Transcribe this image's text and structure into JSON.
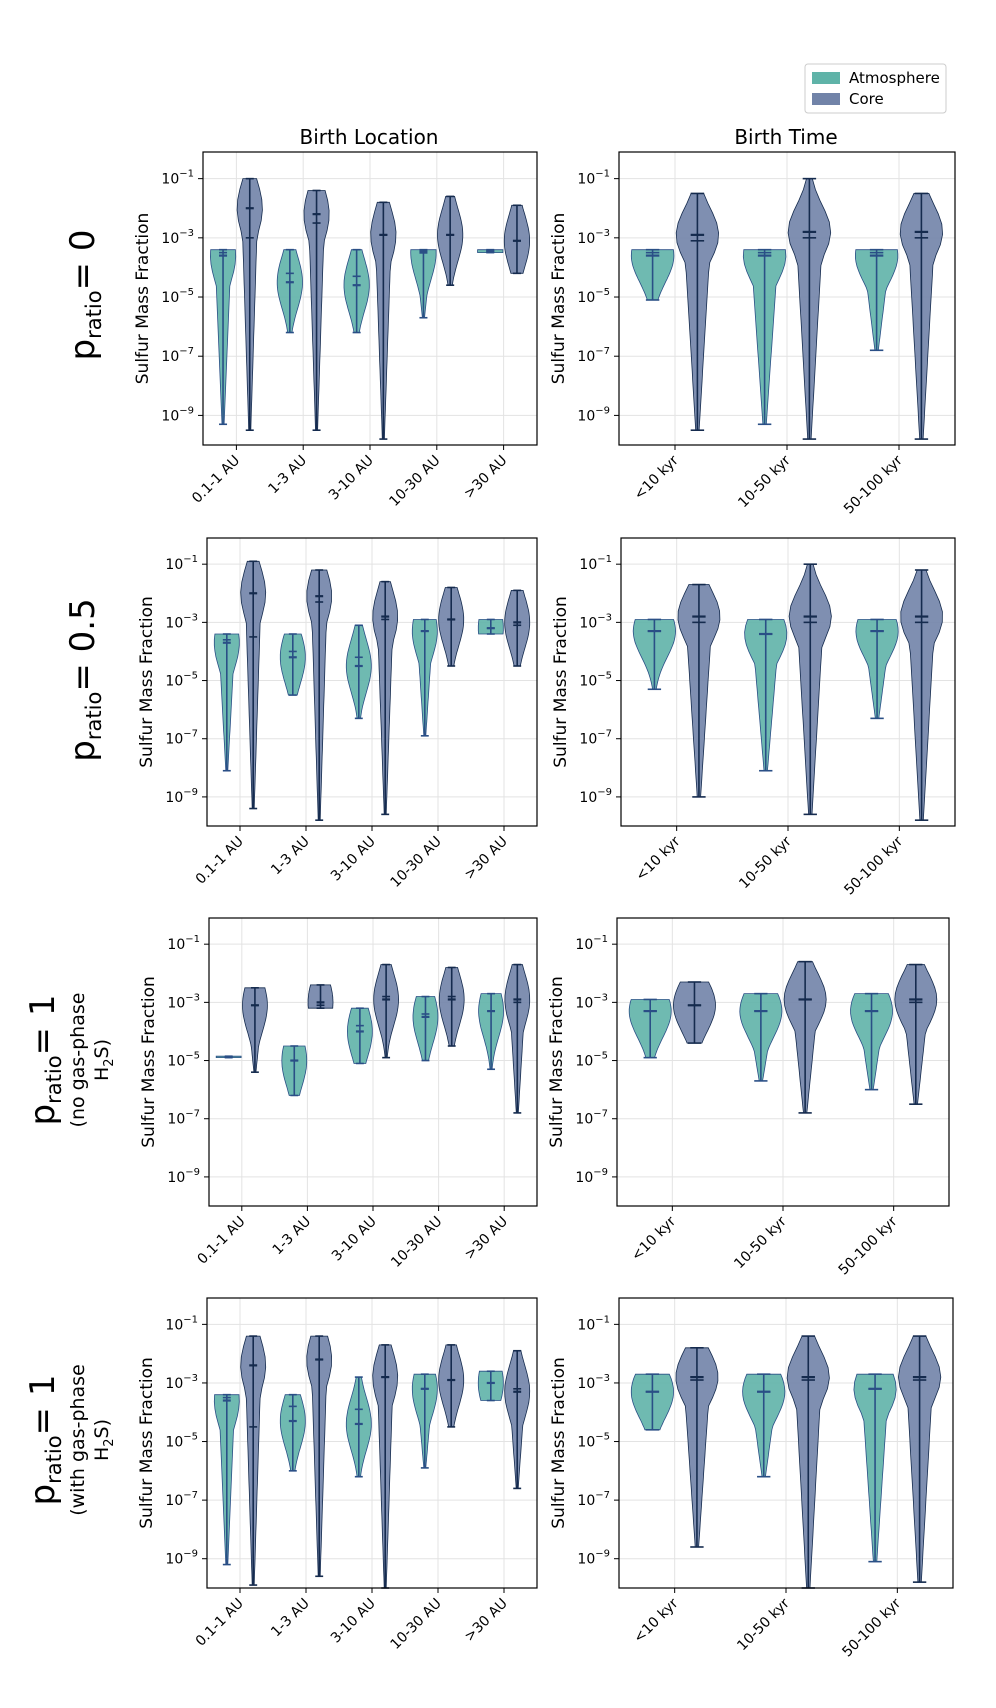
{
  "legend": {
    "items": [
      {
        "label": "Atmosphere",
        "color": "#5fb3a8"
      },
      {
        "label": "Core",
        "color": "#7183a8"
      }
    ]
  },
  "columns": {
    "location_title": "Birth Location",
    "time_title": "Birth Time"
  },
  "rows": [
    {
      "p": "p",
      "sub": "ratio",
      "value": "= 0",
      "note1": "",
      "note2": "",
      "note2_pre": "",
      "note2_sub": "",
      "note2_post": ""
    },
    {
      "p": "p",
      "sub": "ratio",
      "value": "= 0.5",
      "note1": "",
      "note2": "",
      "note2_pre": "",
      "note2_sub": "",
      "note2_post": ""
    },
    {
      "p": "p",
      "sub": "ratio",
      "value": "= 1",
      "note1": "(no gas-phase",
      "note2_pre": "H",
      "note2_sub": "2",
      "note2_post": "S)"
    },
    {
      "p": "p",
      "sub": "ratio",
      "value": "= 1",
      "note1": "(with gas-phase",
      "note2_pre": "H",
      "note2_sub": "2",
      "note2_post": "S)"
    }
  ],
  "chart_data": [
    {
      "type": "violin",
      "row": 0,
      "column": "location",
      "ylabel": "Sulfur Mass Fraction",
      "yscale": "log",
      "ylim_exp": [
        -10,
        -0.1
      ],
      "yticks_exp": [
        -1,
        -3,
        -5,
        -7,
        -9
      ],
      "categories": [
        "0.1-1 AU",
        "1-3 AU",
        "3-10 AU",
        "10-30 AU",
        ">30 AU"
      ],
      "series": [
        {
          "name": "Atmosphere",
          "violins": [
            {
              "min": -9.3,
              "max": -3.4,
              "median": -3.6,
              "mean": -3.5
            },
            {
              "min": -6.2,
              "max": -3.4,
              "median": -4.5,
              "mean": -4.2
            },
            {
              "min": -6.2,
              "max": -3.4,
              "median": -4.6,
              "mean": -4.3
            },
            {
              "min": -5.7,
              "max": -3.4,
              "median": -3.5,
              "mean": -3.45
            },
            {
              "min": -3.5,
              "max": -3.4,
              "median": -3.45,
              "mean": -3.45
            }
          ]
        },
        {
          "name": "Core",
          "violins": [
            {
              "min": -9.5,
              "max": -1.0,
              "median": -2.0,
              "mean": -3.0
            },
            {
              "min": -9.5,
              "max": -1.4,
              "median": -2.2,
              "mean": -2.5
            },
            {
              "min": -9.8,
              "max": -1.8,
              "median": -2.9,
              "mean": -2.9
            },
            {
              "min": -4.6,
              "max": -1.6,
              "median": -2.9,
              "mean": -2.9
            },
            {
              "min": -4.2,
              "max": -1.9,
              "median": -3.1,
              "mean": -3.1
            }
          ]
        }
      ]
    },
    {
      "type": "violin",
      "row": 0,
      "column": "time",
      "ylabel": "Sulfur Mass Fraction",
      "yscale": "log",
      "ylim_exp": [
        -10,
        -0.1
      ],
      "yticks_exp": [
        -1,
        -3,
        -5,
        -7,
        -9
      ],
      "categories": [
        "<10 kyr",
        "10-50 kyr",
        "50-100 kyr"
      ],
      "series": [
        {
          "name": "Atmosphere",
          "violins": [
            {
              "min": -5.1,
              "max": -3.4,
              "median": -3.6,
              "mean": -3.5
            },
            {
              "min": -9.3,
              "max": -3.4,
              "median": -3.6,
              "mean": -3.5
            },
            {
              "min": -6.8,
              "max": -3.4,
              "median": -3.6,
              "mean": -3.5
            }
          ]
        },
        {
          "name": "Core",
          "violins": [
            {
              "min": -9.5,
              "max": -1.5,
              "median": -2.9,
              "mean": -3.1
            },
            {
              "min": -9.8,
              "max": -1.0,
              "median": -2.8,
              "mean": -3.0
            },
            {
              "min": -9.8,
              "max": -1.5,
              "median": -2.8,
              "mean": -3.0
            }
          ]
        }
      ]
    },
    {
      "type": "violin",
      "row": 1,
      "column": "location",
      "ylabel": "Sulfur Mass Fraction",
      "yscale": "log",
      "ylim_exp": [
        -10,
        -0.1
      ],
      "yticks_exp": [
        -1,
        -3,
        -5,
        -7,
        -9
      ],
      "categories": [
        "0.1-1 AU",
        "1-3 AU",
        "3-10 AU",
        "10-30 AU",
        ">30 AU"
      ],
      "series": [
        {
          "name": "Atmosphere",
          "violins": [
            {
              "min": -8.1,
              "max": -3.4,
              "median": -3.7,
              "mean": -3.6
            },
            {
              "min": -5.5,
              "max": -3.4,
              "median": -4.2,
              "mean": -4.0
            },
            {
              "min": -6.3,
              "max": -3.1,
              "median": -4.5,
              "mean": -4.2
            },
            {
              "min": -6.9,
              "max": -2.9,
              "median": -3.3,
              "mean": -3.3
            },
            {
              "min": -3.4,
              "max": -2.9,
              "median": -3.2,
              "mean": -3.2
            }
          ]
        },
        {
          "name": "Core",
          "violins": [
            {
              "min": -9.4,
              "max": -0.9,
              "median": -2.0,
              "mean": -3.5
            },
            {
              "min": -9.8,
              "max": -1.2,
              "median": -2.1,
              "mean": -2.3
            },
            {
              "min": -9.6,
              "max": -1.6,
              "median": -2.8,
              "mean": -2.9
            },
            {
              "min": -4.5,
              "max": -1.8,
              "median": -2.9,
              "mean": -2.9
            },
            {
              "min": -4.5,
              "max": -1.9,
              "median": -3.0,
              "mean": -3.1
            }
          ]
        }
      ]
    },
    {
      "type": "violin",
      "row": 1,
      "column": "time",
      "ylabel": "Sulfur Mass Fraction",
      "yscale": "log",
      "ylim_exp": [
        -10,
        -0.1
      ],
      "yticks_exp": [
        -1,
        -3,
        -5,
        -7,
        -9
      ],
      "categories": [
        "<10 kyr",
        "10-50 kyr",
        "50-100 kyr"
      ],
      "series": [
        {
          "name": "Atmosphere",
          "violins": [
            {
              "min": -5.3,
              "max": -2.9,
              "median": -3.3,
              "mean": -3.3
            },
            {
              "min": -8.1,
              "max": -2.9,
              "median": -3.4,
              "mean": -3.4
            },
            {
              "min": -6.3,
              "max": -2.9,
              "median": -3.3,
              "mean": -3.3
            }
          ]
        },
        {
          "name": "Core",
          "violins": [
            {
              "min": -9.0,
              "max": -1.7,
              "median": -2.8,
              "mean": -3.0
            },
            {
              "min": -9.6,
              "max": -1.0,
              "median": -2.8,
              "mean": -3.0
            },
            {
              "min": -9.8,
              "max": -1.2,
              "median": -2.8,
              "mean": -3.0
            }
          ]
        }
      ]
    },
    {
      "type": "violin",
      "row": 2,
      "column": "location",
      "ylabel": "Sulfur Mass Fraction",
      "yscale": "log",
      "ylim_exp": [
        -10,
        -0.1
      ],
      "yticks_exp": [
        -1,
        -3,
        -5,
        -7,
        -9
      ],
      "categories": [
        "0.1-1 AU",
        "1-3 AU",
        "3-10 AU",
        "10-30 AU",
        ">30 AU"
      ],
      "series": [
        {
          "name": "Atmosphere",
          "violins": [
            {
              "min": -4.9,
              "max": -4.85,
              "median": -4.88,
              "mean": -4.88
            },
            {
              "min": -6.2,
              "max": -4.5,
              "median": -5.0,
              "mean": -5.0
            },
            {
              "min": -5.1,
              "max": -3.2,
              "median": -4.0,
              "mean": -3.8
            },
            {
              "min": -5.0,
              "max": -2.8,
              "median": -3.5,
              "mean": -3.4
            },
            {
              "min": -5.3,
              "max": -2.7,
              "median": -3.3,
              "mean": -3.3
            }
          ]
        },
        {
          "name": "Core",
          "violins": [
            {
              "min": -5.4,
              "max": -2.5,
              "median": -3.1,
              "mean": -3.1
            },
            {
              "min": -3.2,
              "max": -2.4,
              "median": -3.0,
              "mean": -3.1
            },
            {
              "min": -4.9,
              "max": -1.7,
              "median": -2.9,
              "mean": -2.8
            },
            {
              "min": -4.5,
              "max": -1.8,
              "median": -2.9,
              "mean": -2.8
            },
            {
              "min": -6.8,
              "max": -1.7,
              "median": -2.9,
              "mean": -3.0
            }
          ]
        }
      ]
    },
    {
      "type": "violin",
      "row": 2,
      "column": "time",
      "ylabel": "Sulfur Mass Fraction",
      "yscale": "log",
      "ylim_exp": [
        -10,
        -0.1
      ],
      "yticks_exp": [
        -1,
        -3,
        -5,
        -7,
        -9
      ],
      "categories": [
        "<10 kyr",
        "10-50 kyr",
        "50-100 kyr"
      ],
      "series": [
        {
          "name": "Atmosphere",
          "violins": [
            {
              "min": -4.9,
              "max": -2.9,
              "median": -3.3,
              "mean": -3.3
            },
            {
              "min": -5.7,
              "max": -2.7,
              "median": -3.3,
              "mean": -3.3
            },
            {
              "min": -6.0,
              "max": -2.7,
              "median": -3.3,
              "mean": -3.3
            }
          ]
        },
        {
          "name": "Core",
          "violins": [
            {
              "min": -4.4,
              "max": -2.3,
              "median": -3.1,
              "mean": -3.1
            },
            {
              "min": -6.8,
              "max": -1.6,
              "median": -2.9,
              "mean": -2.9
            },
            {
              "min": -6.5,
              "max": -1.7,
              "median": -2.9,
              "mean": -3.0
            }
          ]
        }
      ]
    },
    {
      "type": "violin",
      "row": 3,
      "column": "location",
      "ylabel": "Sulfur Mass Fraction",
      "yscale": "log",
      "ylim_exp": [
        -10,
        -0.1
      ],
      "yticks_exp": [
        -1,
        -3,
        -5,
        -7,
        -9
      ],
      "categories": [
        "0.1-1 AU",
        "1-3 AU",
        "3-10 AU",
        "10-30 AU",
        ">30 AU"
      ],
      "series": [
        {
          "name": "Atmosphere",
          "violins": [
            {
              "min": -9.2,
              "max": -3.4,
              "median": -3.6,
              "mean": -3.5
            },
            {
              "min": -6.0,
              "max": -3.4,
              "median": -4.3,
              "mean": -3.8
            },
            {
              "min": -6.2,
              "max": -2.8,
              "median": -4.4,
              "mean": -3.9
            },
            {
              "min": -5.9,
              "max": -2.7,
              "median": -3.2,
              "mean": -3.2
            },
            {
              "min": -3.6,
              "max": -2.6,
              "median": -3.0,
              "mean": -3.0
            }
          ]
        },
        {
          "name": "Core",
          "violins": [
            {
              "min": -9.9,
              "max": -1.4,
              "median": -2.4,
              "mean": -4.5
            },
            {
              "min": -9.6,
              "max": -1.4,
              "median": -2.2,
              "mean": -2.2
            },
            {
              "min": -10.0,
              "max": -1.7,
              "median": -2.8,
              "mean": -2.8
            },
            {
              "min": -4.5,
              "max": -1.7,
              "median": -2.9,
              "mean": -2.9
            },
            {
              "min": -6.6,
              "max": -1.9,
              "median": -3.3,
              "mean": -3.2
            }
          ]
        }
      ]
    },
    {
      "type": "violin",
      "row": 3,
      "column": "time",
      "ylabel": "Sulfur Mass Fraction",
      "yscale": "log",
      "ylim_exp": [
        -10,
        -0.1
      ],
      "yticks_exp": [
        -1,
        -3,
        -5,
        -7,
        -9
      ],
      "categories": [
        "<10 kyr",
        "10-50 kyr",
        "50-100 kyr"
      ],
      "series": [
        {
          "name": "Atmosphere",
          "violins": [
            {
              "min": -4.6,
              "max": -2.7,
              "median": -3.3,
              "mean": -3.3
            },
            {
              "min": -6.2,
              "max": -2.7,
              "median": -3.3,
              "mean": -3.3
            },
            {
              "min": -9.1,
              "max": -2.7,
              "median": -3.2,
              "mean": -3.2
            }
          ]
        },
        {
          "name": "Core",
          "violins": [
            {
              "min": -8.6,
              "max": -1.8,
              "median": -2.8,
              "mean": -2.9
            },
            {
              "min": -10.0,
              "max": -1.4,
              "median": -2.8,
              "mean": -2.9
            },
            {
              "min": -9.8,
              "max": -1.4,
              "median": -2.8,
              "mean": -2.9
            }
          ]
        }
      ]
    }
  ]
}
